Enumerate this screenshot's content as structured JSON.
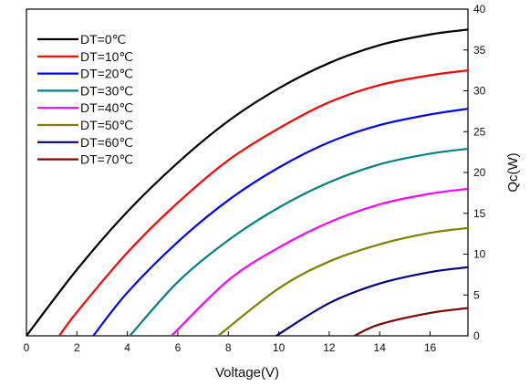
{
  "chart_data": {
    "type": "line",
    "title": "",
    "xlabel": "Voltage(V)",
    "ylabel": "Qc(W)",
    "xlim": [
      0,
      17.5
    ],
    "ylim": [
      0,
      40
    ],
    "x_ticks": [
      0,
      2,
      4,
      6,
      8,
      10,
      12,
      14,
      16
    ],
    "y_ticks": [
      0,
      5,
      10,
      15,
      20,
      25,
      30,
      35,
      40
    ],
    "y_axis_side": "right",
    "grid": false,
    "legend_position": "top-left",
    "series": [
      {
        "name": "DT=0℃",
        "color": "#000000",
        "x": [
          0,
          2,
          4,
          6,
          8,
          10,
          12,
          14,
          16,
          17.5
        ],
        "y": [
          0,
          8.1,
          15.2,
          21.2,
          26.3,
          30.3,
          33.4,
          35.6,
          36.9,
          37.5
        ]
      },
      {
        "name": "DT=10℃",
        "color": "#ff0000",
        "x": [
          1.3,
          2,
          4,
          6,
          8,
          10,
          12,
          14,
          16,
          17.5
        ],
        "y": [
          0,
          2.9,
          10.2,
          16.3,
          21.5,
          25.4,
          28.6,
          30.7,
          31.9,
          32.5
        ]
      },
      {
        "name": "DT=20℃",
        "color": "#0000ff",
        "x": [
          2.65,
          4,
          6,
          8,
          10,
          12,
          14,
          16,
          17.5
        ],
        "y": [
          0,
          5.3,
          11.5,
          16.6,
          20.6,
          23.7,
          25.8,
          27.1,
          27.8
        ]
      },
      {
        "name": "DT=30℃",
        "color": "#008080",
        "x": [
          4.1,
          6,
          8,
          10,
          12,
          14,
          16,
          17.5
        ],
        "y": [
          0,
          6.6,
          11.7,
          15.7,
          18.8,
          21.0,
          22.3,
          22.9
        ]
      },
      {
        "name": "DT=40℃",
        "color": "#ff00ff",
        "x": [
          5.75,
          8,
          10,
          12,
          14,
          16,
          17.5
        ],
        "y": [
          0,
          6.8,
          10.8,
          13.9,
          16.1,
          17.4,
          18.0
        ]
      },
      {
        "name": "DT=50℃",
        "color": "#808000",
        "x": [
          7.6,
          10,
          12,
          14,
          16,
          17.5
        ],
        "y": [
          0,
          5.8,
          9.1,
          11.2,
          12.6,
          13.2
        ]
      },
      {
        "name": "DT=60℃",
        "color": "#000080",
        "x": [
          9.9,
          12,
          14,
          16,
          17.5
        ],
        "y": [
          0,
          4.0,
          6.4,
          7.8,
          8.4
        ]
      },
      {
        "name": "DT=70℃",
        "color": "#800000",
        "x": [
          13.0,
          14,
          16,
          17.5
        ],
        "y": [
          0,
          1.4,
          2.8,
          3.4
        ]
      }
    ]
  }
}
